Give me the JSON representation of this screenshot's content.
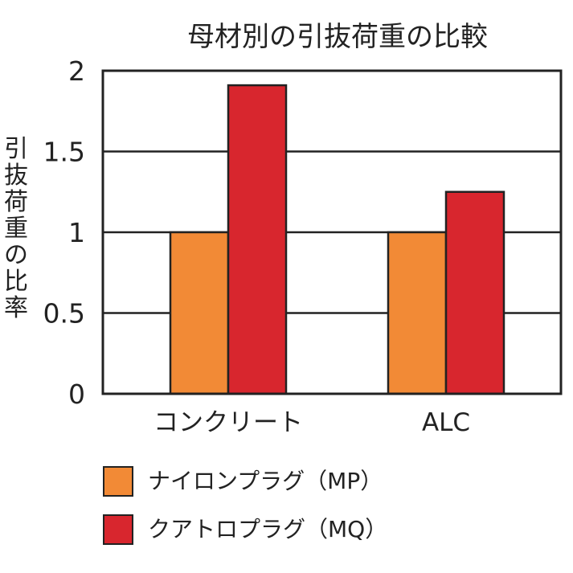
{
  "chart_data": {
    "type": "bar",
    "title": "母材別の引抜荷重の比較",
    "xlabel": "",
    "ylabel": "引抜荷重の比率",
    "categories": [
      "コンクリート",
      "ALC"
    ],
    "series": [
      {
        "name": "ナイロンプラグ（MP）",
        "values": [
          1.0,
          1.0
        ],
        "color": "#f28a36"
      },
      {
        "name": "クアトロプラグ（MQ）",
        "values": [
          1.91,
          1.25
        ],
        "color": "#d8262e"
      }
    ],
    "ylim": [
      0,
      2
    ],
    "yticks": [
      0,
      0.5,
      1,
      1.5,
      2
    ],
    "ytick_labels": [
      "0",
      "0.5",
      "1",
      "1.5",
      "2"
    ],
    "grid": true,
    "legend": "bottom"
  }
}
